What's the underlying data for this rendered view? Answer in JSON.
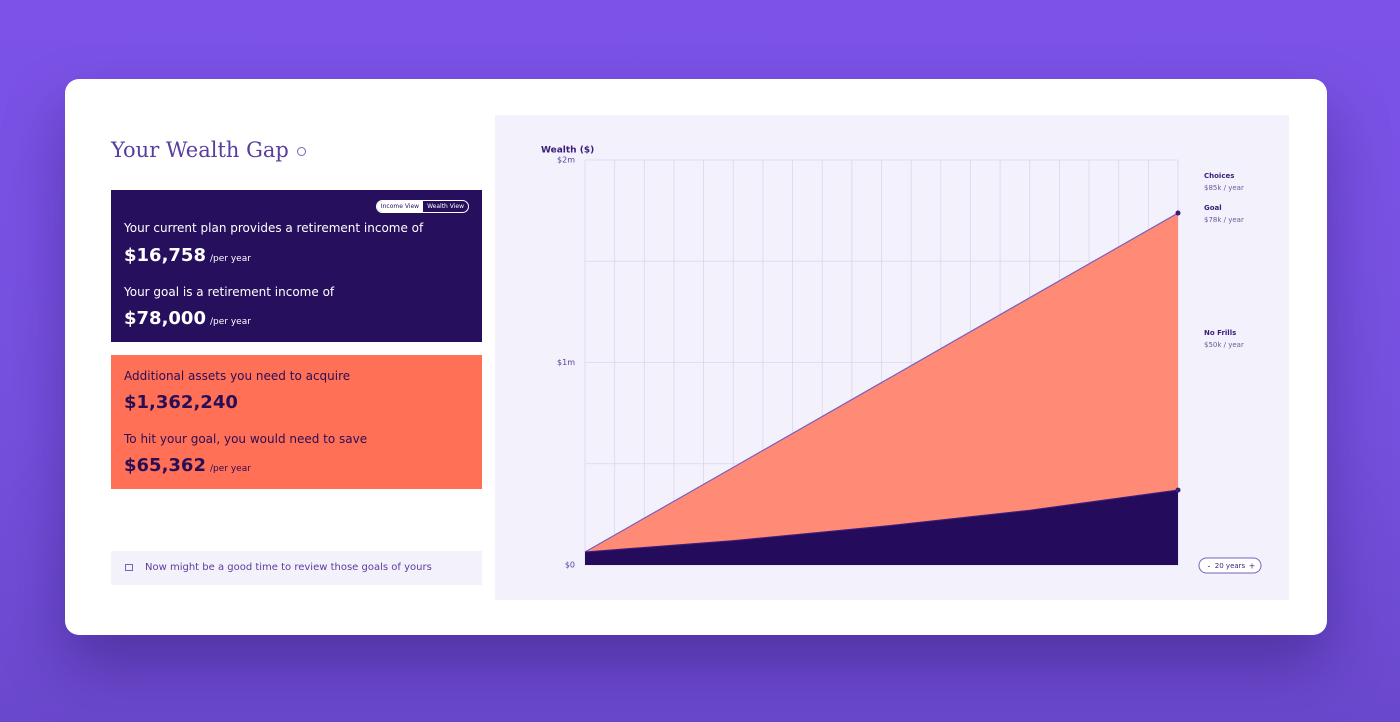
{
  "header": {
    "title": "Your Wealth Gap"
  },
  "view_toggle": [
    "Income View",
    "Wealth View"
  ],
  "plan_card": {
    "current_label": "Your current plan provides a retirement income of",
    "current_value": "$16,758",
    "current_unit": "/per year",
    "goal_label": "Your goal is a retirement income of",
    "goal_value": "$78,000",
    "goal_unit": "/per year"
  },
  "gap_card": {
    "assets_label": "Additional assets you need to acquire",
    "assets_value": "$1,362,240",
    "save_label": "To hit your goal, you would need to save",
    "save_value": "$65,362",
    "save_unit": "/per year"
  },
  "tip": "Now might be a good time to review those goals of yours",
  "horizon": {
    "minus": "-",
    "label": "20 years",
    "plus": "+"
  },
  "chart_data": {
    "type": "area",
    "y_label": "Wealth ($)",
    "x": [
      0,
      5,
      10,
      15,
      20
    ],
    "xlim": [
      0,
      20
    ],
    "xgrid": [
      0,
      1,
      2,
      3,
      4,
      5,
      6,
      7,
      8,
      9,
      10,
      11,
      12,
      13,
      14,
      15,
      16,
      17,
      18,
      19,
      20
    ],
    "ylim": [
      0,
      2000000
    ],
    "yticks": [
      {
        "value": 0,
        "label": "$0"
      },
      {
        "value": 1000000,
        "label": "$1m"
      },
      {
        "value": 2000000,
        "label": "$2m"
      }
    ],
    "minor_yticks": [
      500000,
      1500000
    ],
    "series": [
      {
        "name": "Goal",
        "color": "#ff8a75",
        "line_color": "#7a5fc0",
        "values": [
          64000,
          482000,
          901000,
          1320000,
          1738000
        ]
      },
      {
        "name": "Current plan",
        "color": "#240b5b",
        "line_color": "#3a1d7a",
        "values": [
          64000,
          120000,
          190000,
          270000,
          370000
        ]
      }
    ],
    "annotations": [
      {
        "name": "Choices",
        "text": "$85k / year"
      },
      {
        "name": "Goal",
        "text": "$78k / year"
      },
      {
        "name": "No Frills",
        "text": "$50k / year"
      }
    ]
  }
}
